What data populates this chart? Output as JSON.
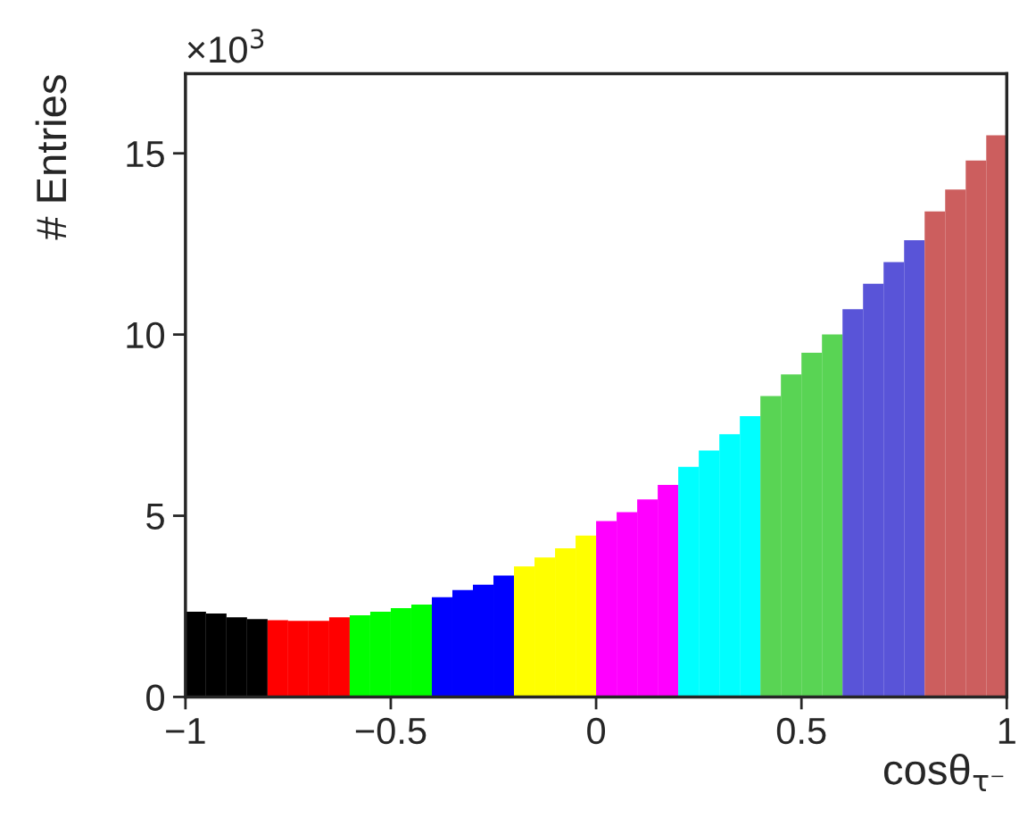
{
  "chart_data": {
    "type": "histogram",
    "xlabel": "cosθ$_{τ⁻}$",
    "ylabel": "# Entries",
    "annotations": [
      "×10$^{3}$"
    ],
    "bins": [
      -1,
      -0.95,
      -0.9,
      -0.85,
      -0.8,
      -0.75,
      -0.7,
      -0.65,
      -0.6,
      -0.55,
      -0.5,
      -0.45,
      -0.4,
      -0.35,
      -0.3,
      -0.25,
      -0.2,
      -0.15,
      -0.1,
      -0.05,
      0,
      0.05,
      0.1,
      0.15,
      0.2,
      0.25,
      0.3,
      0.35,
      0.4,
      0.45,
      0.5,
      0.55,
      0.6,
      0.65,
      0.7,
      0.75,
      0.8,
      0.85,
      0.9,
      0.95,
      1
    ],
    "values": [
      2.35,
      2.3,
      2.2,
      2.15,
      2.12,
      2.1,
      2.1,
      2.2,
      2.25,
      2.35,
      2.45,
      2.55,
      2.75,
      2.95,
      3.1,
      3.35,
      3.6,
      3.85,
      4.1,
      4.45,
      4.85,
      5.1,
      5.45,
      5.85,
      6.35,
      6.8,
      7.25,
      7.75,
      8.3,
      8.9,
      9.5,
      10.0,
      10.7,
      11.4,
      12.0,
      12.6,
      13.4,
      14.0,
      14.8,
      15.5
    ],
    "colors": [
      "#000000",
      "#000000",
      "#000000",
      "#000000",
      "#ff0000",
      "#ff0000",
      "#ff0000",
      "#ff0000",
      "#00ff00",
      "#00ff00",
      "#00ff00",
      "#00ff00",
      "#0000ff",
      "#0000ff",
      "#0000ff",
      "#0000ff",
      "#ffff00",
      "#ffff00",
      "#ffff00",
      "#ffff00",
      "#ff00ff",
      "#ff00ff",
      "#ff00ff",
      "#ff00ff",
      "#00ffff",
      "#00ffff",
      "#00ffff",
      "#00ffff",
      "#59d454",
      "#59d454",
      "#59d454",
      "#59d454",
      "#5954d8",
      "#5954d8",
      "#5954d8",
      "#5954d8",
      "#cc5e5e",
      "#cc5e5e",
      "#cc5e5e",
      "#cc5e5e"
    ],
    "xlim": [
      -1,
      1
    ],
    "xticks": [
      {
        "value": -1,
        "label": "−1"
      },
      {
        "value": -0.5,
        "label": "−0.5"
      },
      0,
      0.5,
      1
    ],
    "ylim": [
      0,
      17.2
    ],
    "yticks": [
      0,
      5,
      10,
      15
    ],
    "grid": false,
    "legend": false
  }
}
